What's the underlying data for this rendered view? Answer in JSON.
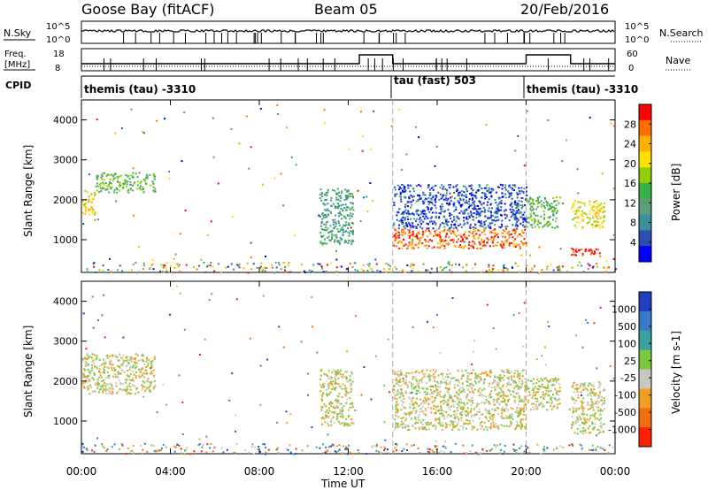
{
  "header": {
    "station": "Goose Bay (fitACF)",
    "beam": "Beam 05",
    "date": "20/Feb/2016"
  },
  "noise_panel": {
    "left_label": "N.Sky",
    "right_label": "N.Search",
    "left_ticks": [
      "10^5",
      "10^0"
    ],
    "right_ticks": [
      "10^5",
      "10^0"
    ]
  },
  "freq_panel": {
    "left_label_line1": "Freq.",
    "left_label_line2": "[MHz]",
    "right_label": "Nave",
    "left_ticks": [
      "18",
      "8"
    ],
    "right_ticks": [
      "60",
      "0"
    ]
  },
  "cpid_panel": {
    "label": "CPID",
    "segments": [
      {
        "name": "themis (tau) -3310",
        "start_hour": 0,
        "end_hour": 14
      },
      {
        "name": "tau (fast) 503",
        "start_hour": 14,
        "end_hour": 20
      },
      {
        "name": "themis (tau) -3310",
        "start_hour": 20,
        "end_hour": 24
      }
    ]
  },
  "axes": {
    "x_label": "Time UT",
    "x_ticks": [
      "00:00",
      "04:00",
      "08:00",
      "12:00",
      "16:00",
      "20:00",
      "00:00"
    ],
    "x_range_hours": [
      0,
      24
    ],
    "y_label": "Slant Range [km]",
    "y_ticks": [
      "1000",
      "2000",
      "3000",
      "4000"
    ],
    "y_range_km": [
      180,
      4500
    ]
  },
  "chart_data": [
    {
      "type": "heatmap",
      "title": "Power",
      "colorbar_label": "Power [dB]",
      "colorbar_ticks": [
        "28",
        "24",
        "20",
        "16",
        "12",
        "8",
        "4"
      ],
      "colors": [
        "#0000ff",
        "#2a4fb0",
        "#3a8fa0",
        "#5a9e7a",
        "#38b048",
        "#8fd000",
        "#ffe000",
        "#ffb000",
        "#ff7000",
        "#ff0000"
      ],
      "x_range": [
        0,
        24
      ],
      "y_range": [
        180,
        4500
      ],
      "regions": [
        {
          "t0": 0.0,
          "t1": 0.6,
          "r0": 1650,
          "r1": 2300,
          "level": 6
        },
        {
          "t0": 0.6,
          "t1": 3.3,
          "r0": 2200,
          "r1": 2700,
          "level": 4
        },
        {
          "t0": 10.7,
          "t1": 12.2,
          "r0": 900,
          "r1": 2300,
          "level": 3
        },
        {
          "t0": 14.0,
          "t1": 20.0,
          "r0": 800,
          "r1": 1300,
          "level": 8
        },
        {
          "t0": 14.0,
          "t1": 20.0,
          "r0": 1300,
          "r1": 2400,
          "level": 1
        },
        {
          "t0": 20.0,
          "t1": 21.5,
          "r0": 1300,
          "r1": 2100,
          "level": 4
        },
        {
          "t0": 22.0,
          "t1": 23.5,
          "r0": 600,
          "r1": 800,
          "level": 9
        },
        {
          "t0": 22.0,
          "t1": 23.5,
          "r0": 1300,
          "r1": 2000,
          "level": 6
        }
      ]
    },
    {
      "type": "heatmap",
      "title": "Velocity",
      "colorbar_label": "Velocity [m s-1]",
      "colorbar_ticks": [
        "1000",
        "500",
        "100",
        "25",
        "-25",
        "-100",
        "-500",
        "-1000"
      ],
      "colors": [
        "#2040c0",
        "#3a78c8",
        "#3aa0a0",
        "#7ac840",
        "#c8c8c0",
        "#f0a020",
        "#f07010",
        "#ff2000"
      ],
      "x_range": [
        0,
        24
      ],
      "y_range": [
        180,
        4500
      ],
      "regions": [
        {
          "t0": 0.0,
          "t1": 3.3,
          "r0": 1700,
          "r1": 2700,
          "level": 4
        },
        {
          "t0": 10.7,
          "t1": 12.2,
          "r0": 900,
          "r1": 2300,
          "level": 4
        },
        {
          "t0": 14.0,
          "t1": 20.0,
          "r0": 800,
          "r1": 1300,
          "level": 4
        },
        {
          "t0": 14.0,
          "t1": 20.0,
          "r0": 1300,
          "r1": 2300,
          "level": 4
        },
        {
          "t0": 20.0,
          "t1": 21.5,
          "r0": 1300,
          "r1": 2100,
          "level": 4
        },
        {
          "t0": 22.0,
          "t1": 23.5,
          "r0": 700,
          "r1": 2000,
          "level": 4
        }
      ]
    }
  ]
}
